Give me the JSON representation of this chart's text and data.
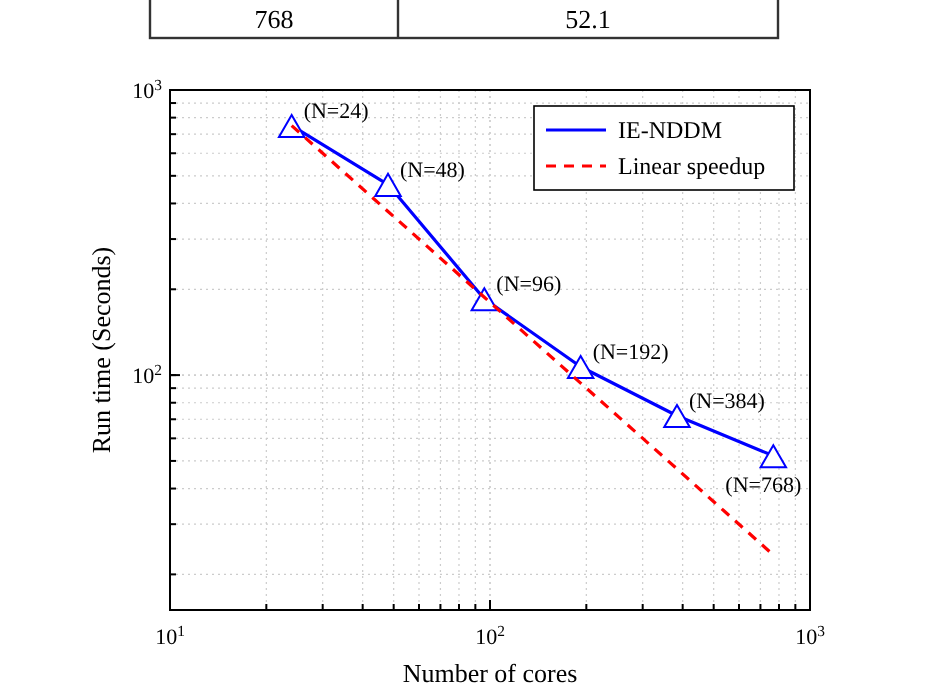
{
  "chart_data": {
    "type": "line",
    "xlabel": "Number of cores",
    "ylabel": "Run time (Seconds)",
    "log": "xy",
    "grid": true,
    "legend": "top right",
    "x": [
      24,
      48,
      96,
      192,
      384,
      768
    ],
    "series": [
      {
        "name": "IE-NDDM",
        "color": "#0000ff",
        "values": [
          750,
          466,
          185,
          107,
          72,
          52.1
        ],
        "marker": "triangle",
        "line_style": "solid"
      },
      {
        "name": "Linear speedup",
        "color": "#ff0000",
        "values": [
          750,
          375,
          187.5,
          93.75,
          46.9,
          23.4
        ],
        "marker": "none",
        "line_style": "dashed"
      }
    ],
    "xlim": [
      10,
      1000
    ],
    "xticks": [
      {
        "value": 10,
        "label": "10$^{1}$"
      },
      {
        "value": 100,
        "label": "10$^{2}$"
      },
      {
        "value": 1000,
        "label": "10$^{3}$"
      }
    ],
    "ylim": [
      15,
      1000
    ],
    "yticks": [
      {
        "value": 100,
        "label": "10$^{2}$"
      },
      {
        "value": 1000,
        "label": "10$^{3}$"
      }
    ],
    "annotations": [
      {
        "text": "(N=24)",
        "x": 24,
        "y": 750
      },
      {
        "text": "(N=48)",
        "x": 48,
        "y": 466
      },
      {
        "text": "(N=96)",
        "x": 96,
        "y": 185
      },
      {
        "text": "(N=192)",
        "x": 192,
        "y": 107
      },
      {
        "text": "(N=384)",
        "x": 384,
        "y": 72
      },
      {
        "text": "(N=768)",
        "x": 768,
        "y": 52.1
      },
      "768",
      "52.1"
    ]
  }
}
